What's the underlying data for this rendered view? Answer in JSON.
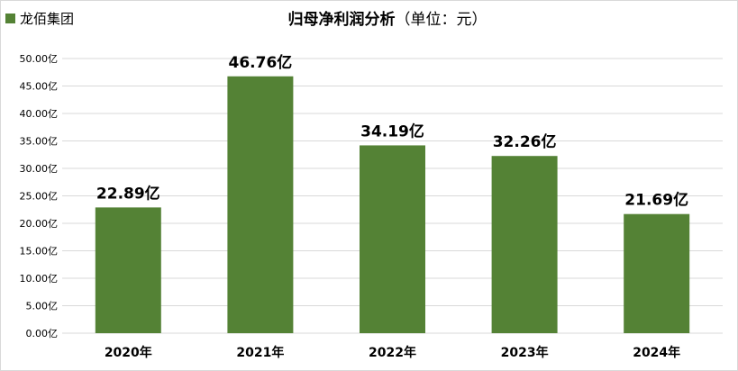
{
  "legend": {
    "series_name": "龙佰集团",
    "color": "#548235"
  },
  "title": {
    "main": "归母净利润分析",
    "unit": "（单位：元）"
  },
  "chart_data": {
    "type": "bar",
    "title": "归母净利润分析（单位：元）",
    "categories": [
      "2020年",
      "2021年",
      "2022年",
      "2023年",
      "2024年"
    ],
    "series": [
      {
        "name": "龙佰集团",
        "values": [
          22.89,
          46.76,
          34.19,
          32.26,
          21.69
        ],
        "data_labels": [
          "22.89亿",
          "46.76亿",
          "34.19亿",
          "32.26亿",
          "21.69亿"
        ]
      }
    ],
    "yticks": [
      "0.00亿",
      "5.00亿",
      "10.00亿",
      "15.00亿",
      "20.00亿",
      "25.00亿",
      "30.00亿",
      "35.00亿",
      "40.00亿",
      "45.00亿",
      "50.00亿"
    ],
    "ylim": [
      0,
      50
    ],
    "grid": true,
    "legend_position": "top-left",
    "bar_color": "#548235",
    "grid_color": "#d9d9d9"
  }
}
